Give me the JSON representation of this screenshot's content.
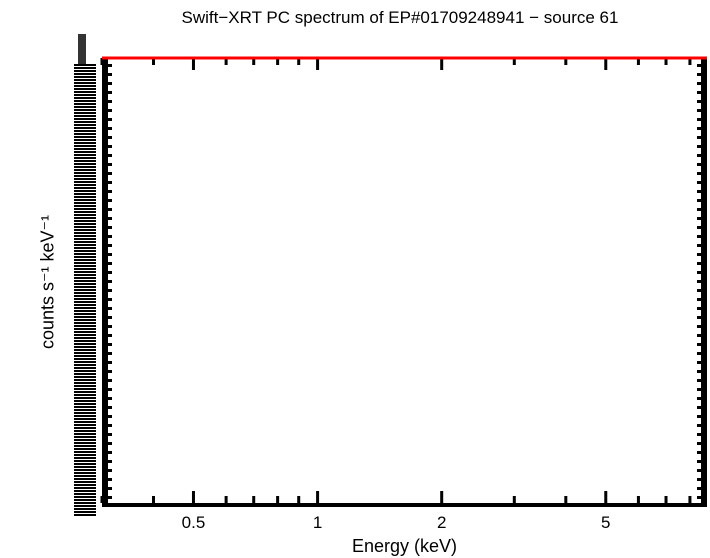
{
  "chart_data": {
    "type": "line",
    "title": "Swift−XRT PC spectrum of EP#01709248941 − source 61",
    "xlabel": "Energy (keV)",
    "ylabel": "counts s⁻¹ keV⁻¹",
    "xscale": "log",
    "xlim": [
      0.3,
      8.8
    ],
    "xticks": [
      0.5,
      1,
      2,
      5
    ],
    "xtick_labels": [
      "0.5",
      "1",
      "2",
      "5"
    ],
    "series": [
      {
        "color": "#ff0000",
        "x": [
          0.3,
          8.8
        ],
        "y_position": "top-edge"
      }
    ],
    "grid": false,
    "legend": "none"
  }
}
